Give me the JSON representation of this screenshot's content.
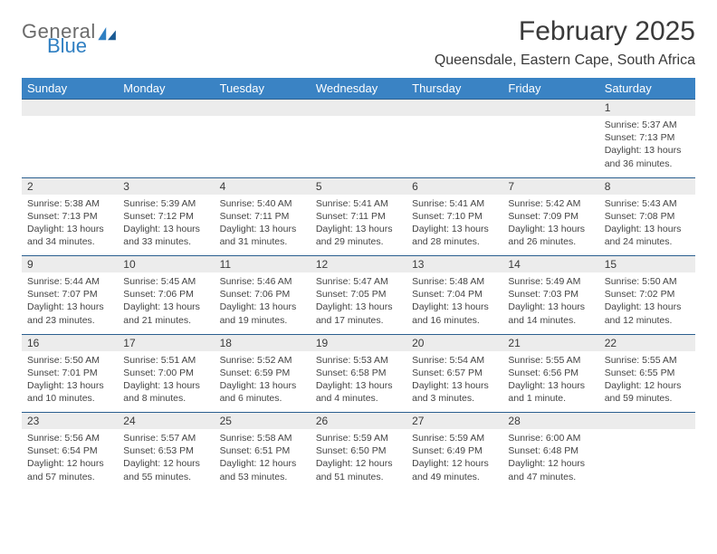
{
  "logo": {
    "text1": "General",
    "text2": "Blue"
  },
  "title": "February 2025",
  "location": "Queensdale, Eastern Cape, South Africa",
  "colors": {
    "header_bg": "#3a83c4",
    "header_text": "#ffffff",
    "daynum_bg": "#ececec",
    "rule": "#2b5f8f",
    "title_color": "#3a3a3a",
    "logo_gray": "#6b6b6b",
    "logo_blue": "#2f7fc2"
  },
  "day_headers": [
    "Sunday",
    "Monday",
    "Tuesday",
    "Wednesday",
    "Thursday",
    "Friday",
    "Saturday"
  ],
  "weeks": [
    {
      "nums": [
        "",
        "",
        "",
        "",
        "",
        "",
        "1"
      ],
      "cells": [
        [],
        [],
        [],
        [],
        [],
        [],
        [
          "Sunrise: 5:37 AM",
          "Sunset: 7:13 PM",
          "Daylight: 13 hours and 36 minutes."
        ]
      ]
    },
    {
      "nums": [
        "2",
        "3",
        "4",
        "5",
        "6",
        "7",
        "8"
      ],
      "cells": [
        [
          "Sunrise: 5:38 AM",
          "Sunset: 7:13 PM",
          "Daylight: 13 hours and 34 minutes."
        ],
        [
          "Sunrise: 5:39 AM",
          "Sunset: 7:12 PM",
          "Daylight: 13 hours and 33 minutes."
        ],
        [
          "Sunrise: 5:40 AM",
          "Sunset: 7:11 PM",
          "Daylight: 13 hours and 31 minutes."
        ],
        [
          "Sunrise: 5:41 AM",
          "Sunset: 7:11 PM",
          "Daylight: 13 hours and 29 minutes."
        ],
        [
          "Sunrise: 5:41 AM",
          "Sunset: 7:10 PM",
          "Daylight: 13 hours and 28 minutes."
        ],
        [
          "Sunrise: 5:42 AM",
          "Sunset: 7:09 PM",
          "Daylight: 13 hours and 26 minutes."
        ],
        [
          "Sunrise: 5:43 AM",
          "Sunset: 7:08 PM",
          "Daylight: 13 hours and 24 minutes."
        ]
      ]
    },
    {
      "nums": [
        "9",
        "10",
        "11",
        "12",
        "13",
        "14",
        "15"
      ],
      "cells": [
        [
          "Sunrise: 5:44 AM",
          "Sunset: 7:07 PM",
          "Daylight: 13 hours and 23 minutes."
        ],
        [
          "Sunrise: 5:45 AM",
          "Sunset: 7:06 PM",
          "Daylight: 13 hours and 21 minutes."
        ],
        [
          "Sunrise: 5:46 AM",
          "Sunset: 7:06 PM",
          "Daylight: 13 hours and 19 minutes."
        ],
        [
          "Sunrise: 5:47 AM",
          "Sunset: 7:05 PM",
          "Daylight: 13 hours and 17 minutes."
        ],
        [
          "Sunrise: 5:48 AM",
          "Sunset: 7:04 PM",
          "Daylight: 13 hours and 16 minutes."
        ],
        [
          "Sunrise: 5:49 AM",
          "Sunset: 7:03 PM",
          "Daylight: 13 hours and 14 minutes."
        ],
        [
          "Sunrise: 5:50 AM",
          "Sunset: 7:02 PM",
          "Daylight: 13 hours and 12 minutes."
        ]
      ]
    },
    {
      "nums": [
        "16",
        "17",
        "18",
        "19",
        "20",
        "21",
        "22"
      ],
      "cells": [
        [
          "Sunrise: 5:50 AM",
          "Sunset: 7:01 PM",
          "Daylight: 13 hours and 10 minutes."
        ],
        [
          "Sunrise: 5:51 AM",
          "Sunset: 7:00 PM",
          "Daylight: 13 hours and 8 minutes."
        ],
        [
          "Sunrise: 5:52 AM",
          "Sunset: 6:59 PM",
          "Daylight: 13 hours and 6 minutes."
        ],
        [
          "Sunrise: 5:53 AM",
          "Sunset: 6:58 PM",
          "Daylight: 13 hours and 4 minutes."
        ],
        [
          "Sunrise: 5:54 AM",
          "Sunset: 6:57 PM",
          "Daylight: 13 hours and 3 minutes."
        ],
        [
          "Sunrise: 5:55 AM",
          "Sunset: 6:56 PM",
          "Daylight: 13 hours and 1 minute."
        ],
        [
          "Sunrise: 5:55 AM",
          "Sunset: 6:55 PM",
          "Daylight: 12 hours and 59 minutes."
        ]
      ]
    },
    {
      "nums": [
        "23",
        "24",
        "25",
        "26",
        "27",
        "28",
        ""
      ],
      "cells": [
        [
          "Sunrise: 5:56 AM",
          "Sunset: 6:54 PM",
          "Daylight: 12 hours and 57 minutes."
        ],
        [
          "Sunrise: 5:57 AM",
          "Sunset: 6:53 PM",
          "Daylight: 12 hours and 55 minutes."
        ],
        [
          "Sunrise: 5:58 AM",
          "Sunset: 6:51 PM",
          "Daylight: 12 hours and 53 minutes."
        ],
        [
          "Sunrise: 5:59 AM",
          "Sunset: 6:50 PM",
          "Daylight: 12 hours and 51 minutes."
        ],
        [
          "Sunrise: 5:59 AM",
          "Sunset: 6:49 PM",
          "Daylight: 12 hours and 49 minutes."
        ],
        [
          "Sunrise: 6:00 AM",
          "Sunset: 6:48 PM",
          "Daylight: 12 hours and 47 minutes."
        ],
        []
      ]
    }
  ]
}
